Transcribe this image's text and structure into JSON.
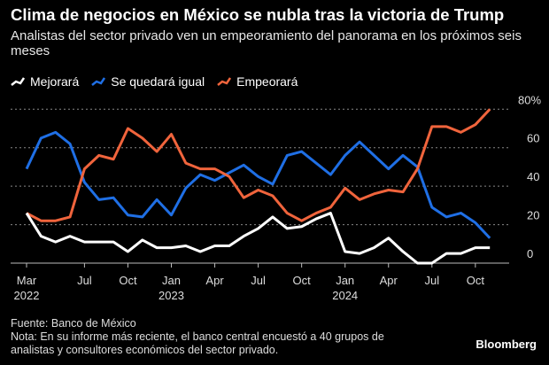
{
  "chart_data": {
    "type": "line",
    "title": "Clima de negocios en México se nubla tras la victoria de Trump",
    "subtitle": "Analistas del sector privado ven un empeoramiento del panorama en los próximos seis meses",
    "x_tick_labels": [
      {
        "month": "Mar",
        "year": "2022",
        "index": 0
      },
      {
        "month": "Jul",
        "year": "",
        "index": 4
      },
      {
        "month": "Oct",
        "year": "",
        "index": 7
      },
      {
        "month": "Jan",
        "year": "2023",
        "index": 10
      },
      {
        "month": "Apr",
        "year": "",
        "index": 13
      },
      {
        "month": "Jul",
        "year": "",
        "index": 16
      },
      {
        "month": "Oct",
        "year": "",
        "index": 19
      },
      {
        "month": "Jan",
        "year": "2024",
        "index": 22
      },
      {
        "month": "Apr",
        "year": "",
        "index": 25
      },
      {
        "month": "Jul",
        "year": "",
        "index": 28
      },
      {
        "month": "Oct",
        "year": "",
        "index": 31
      }
    ],
    "y_ticks": [
      "0",
      "20",
      "40",
      "60",
      "80%"
    ],
    "ylim": [
      0,
      80
    ],
    "grid": true,
    "legend_placement": "top-left",
    "series": [
      {
        "name": "Mejorará",
        "color": "#ffffff",
        "values": [
          26,
          14,
          11,
          14,
          11,
          11,
          11,
          6,
          12,
          8,
          8,
          9,
          6,
          9,
          9,
          14,
          18,
          24,
          18,
          19,
          23,
          26,
          6,
          5,
          8,
          13,
          6,
          0,
          0,
          5,
          5,
          8,
          8
        ]
      },
      {
        "name": "Se quedará igual",
        "color": "#1f6fe5",
        "values": [
          49,
          65,
          68,
          62,
          42,
          33,
          34,
          25,
          24,
          33,
          25,
          39,
          46,
          43,
          47,
          51,
          45,
          41,
          56,
          58,
          52,
          46,
          56,
          63,
          56,
          49,
          56,
          50,
          29,
          24,
          26,
          21,
          13
        ]
      },
      {
        "name": "Empeorará",
        "color": "#f0643c",
        "values": [
          26,
          22,
          22,
          24,
          49,
          56,
          54,
          70,
          65,
          58,
          67,
          52,
          49,
          49,
          45,
          34,
          38,
          35,
          26,
          22,
          26,
          29,
          39,
          33,
          36,
          38,
          37,
          49,
          71,
          71,
          68,
          72,
          80
        ]
      }
    ]
  },
  "footer": {
    "source": "Fuente: Banco de México",
    "note_line1": "Nota: En su informe más reciente, el banco central encuestó a 40 grupos de",
    "note_line2": "analistas y consultores económicos del sector privado."
  },
  "brand": "Bloomberg"
}
